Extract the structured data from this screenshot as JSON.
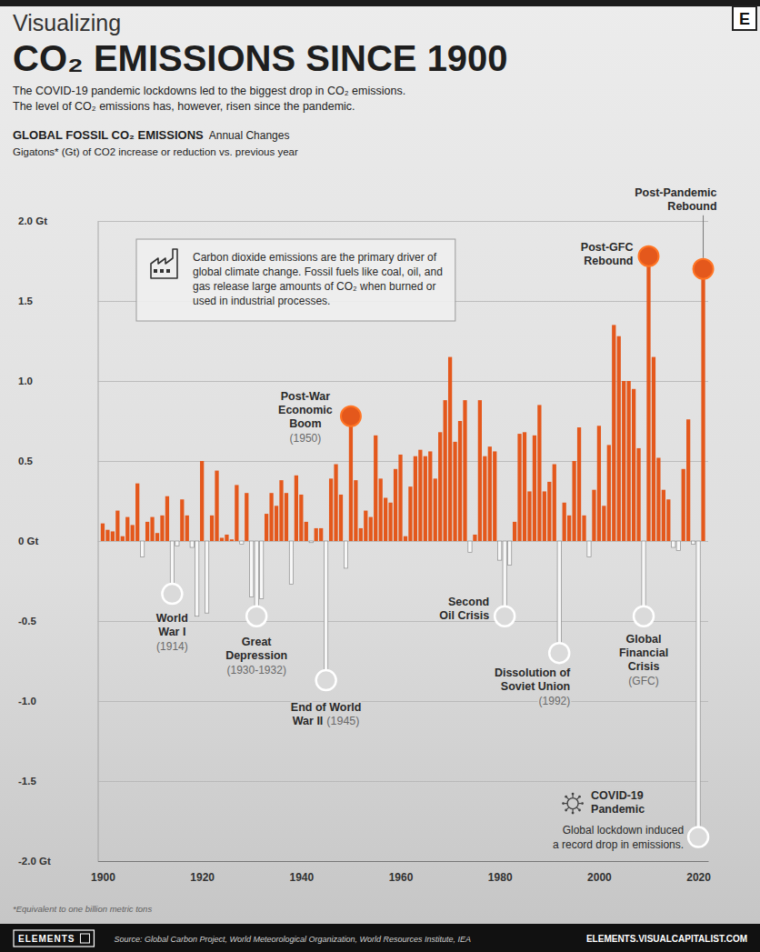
{
  "chart_data": {
    "type": "bar",
    "logo": "E",
    "pretitle": "Visualizing",
    "title": "CO₂ EMISSIONS SINCE 1900",
    "subtitle": [
      "The COVID-19 pandemic lockdowns led to the biggest drop in CO₂ emissions.",
      "The level of CO₂ emissions has, however, risen since the pandemic."
    ],
    "chart_heading": "GLOBAL FOSSIL CO₂ EMISSIONS",
    "chart_heading_note": "Annual Changes",
    "ylabel": "Gigatons* (Gt) of CO2 increase or reduction vs. previous year",
    "info_box": [
      "Carbon dioxide emissions are the primary driver of",
      "global climate change. Fossil fuels like coal, oil, and",
      "gas release large amounts of CO₂ when burned or",
      "used in industrial processes."
    ],
    "x": [
      1900,
      1901,
      1902,
      1903,
      1904,
      1905,
      1906,
      1907,
      1908,
      1909,
      1910,
      1911,
      1912,
      1913,
      1914,
      1915,
      1916,
      1917,
      1918,
      1919,
      1920,
      1921,
      1922,
      1923,
      1924,
      1925,
      1926,
      1927,
      1928,
      1929,
      1930,
      1931,
      1932,
      1933,
      1934,
      1935,
      1936,
      1937,
      1938,
      1939,
      1940,
      1941,
      1942,
      1943,
      1944,
      1945,
      1946,
      1947,
      1948,
      1949,
      1950,
      1951,
      1952,
      1953,
      1954,
      1955,
      1956,
      1957,
      1958,
      1959,
      1960,
      1961,
      1962,
      1963,
      1964,
      1965,
      1966,
      1967,
      1968,
      1969,
      1970,
      1971,
      1972,
      1973,
      1974,
      1975,
      1976,
      1977,
      1978,
      1979,
      1980,
      1981,
      1982,
      1983,
      1984,
      1985,
      1986,
      1987,
      1988,
      1989,
      1990,
      1991,
      1992,
      1993,
      1994,
      1995,
      1996,
      1997,
      1998,
      1999,
      2000,
      2001,
      2002,
      2003,
      2004,
      2005,
      2006,
      2007,
      2008,
      2009,
      2010,
      2011,
      2012,
      2013,
      2014,
      2015,
      2016,
      2017,
      2018,
      2019,
      2020,
      2021
    ],
    "values": [
      0.11,
      0.07,
      0.06,
      0.19,
      0.03,
      0.15,
      0.1,
      0.36,
      -0.1,
      0.12,
      0.15,
      0.05,
      0.16,
      0.28,
      -0.33,
      -0.03,
      0.26,
      0.16,
      -0.04,
      -0.47,
      0.5,
      -0.45,
      0.16,
      0.44,
      0.02,
      0.04,
      0.01,
      0.35,
      -0.02,
      0.3,
      -0.35,
      -0.47,
      -0.36,
      0.17,
      0.3,
      0.22,
      0.38,
      0.3,
      -0.27,
      0.41,
      0.29,
      0.12,
      -0.01,
      0.08,
      0.08,
      -0.87,
      0.39,
      0.48,
      0.29,
      -0.17,
      0.78,
      0.38,
      0.08,
      0.19,
      0.15,
      0.66,
      0.39,
      0.27,
      0.24,
      0.45,
      0.54,
      0.03,
      0.34,
      0.53,
      0.57,
      0.53,
      0.56,
      0.39,
      0.68,
      0.88,
      1.15,
      0.62,
      0.75,
      0.88,
      -0.07,
      0.04,
      0.88,
      0.53,
      0.59,
      0.56,
      -0.12,
      -0.47,
      -0.15,
      0.12,
      0.67,
      0.68,
      0.31,
      0.66,
      0.85,
      0.31,
      0.37,
      0.48,
      -0.7,
      0.24,
      0.16,
      0.5,
      0.71,
      0.16,
      -0.1,
      0.32,
      0.72,
      0.22,
      0.6,
      1.35,
      1.28,
      1.0,
      1.0,
      0.95,
      0.58,
      -0.47,
      1.78,
      1.15,
      0.52,
      0.32,
      0.26,
      -0.04,
      -0.06,
      0.45,
      0.76,
      -0.02,
      -1.85,
      1.7
    ],
    "colors": [
      "#e4581c",
      "#e4581c",
      "#e4581c",
      "#e4581c",
      "#e4581c",
      "#e4581c",
      "#e4581c",
      "#e4581c",
      "#f7f7f7",
      "#e4581c",
      "#e4581c",
      "#e4581c",
      "#e4581c",
      "#e4581c",
      "#f7f7f7",
      "#f7f7f7",
      "#e4581c",
      "#e4581c",
      "#f7f7f7",
      "#f7f7f7",
      "#e4581c",
      "#f7f7f7",
      "#e4581c",
      "#e4581c",
      "#e4581c",
      "#e4581c",
      "#e4581c",
      "#e4581c",
      "#f7f7f7",
      "#e4581c",
      "#f7f7f7",
      "#f7f7f7",
      "#f7f7f7",
      "#e4581c",
      "#e4581c",
      "#e4581c",
      "#e4581c",
      "#e4581c",
      "#f7f7f7",
      "#e4581c",
      "#e4581c",
      "#e4581c",
      "#f7f7f7",
      "#e4581c",
      "#e4581c",
      "#f7f7f7",
      "#e4581c",
      "#e4581c",
      "#e4581c",
      "#f7f7f7",
      "#e4581c",
      "#e4581c",
      "#e4581c",
      "#e4581c",
      "#e4581c",
      "#e4581c",
      "#e4581c",
      "#e4581c",
      "#e4581c",
      "#e4581c",
      "#e4581c",
      "#e4581c",
      "#e4581c",
      "#e4581c",
      "#e4581c",
      "#e4581c",
      "#e4581c",
      "#e4581c",
      "#e4581c",
      "#e4581c",
      "#e4581c",
      "#e4581c",
      "#e4581c",
      "#e4581c",
      "#f7f7f7",
      "#e4581c",
      "#e4581c",
      "#e4581c",
      "#e4581c",
      "#e4581c",
      "#f7f7f7",
      "#f7f7f7",
      "#f7f7f7",
      "#e4581c",
      "#e4581c",
      "#e4581c",
      "#e4581c",
      "#e4581c",
      "#e4581c",
      "#e4581c",
      "#e4581c",
      "#e4581c",
      "#f7f7f7",
      "#e4581c",
      "#e4581c",
      "#e4581c",
      "#e4581c",
      "#e4581c",
      "#f7f7f7",
      "#e4581c",
      "#e4581c",
      "#e4581c",
      "#e4581c",
      "#e4581c",
      "#e4581c",
      "#e4581c",
      "#e4581c",
      "#e4581c",
      "#e4581c",
      "#f7f7f7",
      "#e4581c",
      "#e4581c",
      "#e4581c",
      "#e4581c",
      "#e4581c",
      "#f7f7f7",
      "#f7f7f7",
      "#e4581c",
      "#e4581c",
      "#f7f7f7",
      "#f7f7f7",
      "#e4581c"
    ],
    "xlim": [
      1899,
      2022
    ],
    "xticks": [
      1900,
      1920,
      1940,
      1960,
      1980,
      2000,
      2020
    ],
    "ylim": [
      -2,
      2
    ],
    "yticks": [
      {
        "value": -2,
        "label": "-2.0 Gt"
      },
      -1.5,
      {
        "value": -1,
        "label": "-1.0"
      },
      -0.5,
      {
        "value": 0,
        "label": "0 Gt"
      },
      0.5,
      {
        "value": 1,
        "label": "1.0"
      },
      1.5,
      {
        "value": 2,
        "label": "2.0 Gt"
      }
    ],
    "grid": true,
    "annotations": [
      {
        "label": [
          "Post-War",
          "Economic",
          "Boom"
        ],
        "note": "(1950)",
        "x": 1950
      },
      {
        "label": [
          "Post-GFC",
          "Rebound"
        ],
        "x": 2010
      },
      {
        "label": [
          "Post-Pandemic",
          "Rebound"
        ],
        "x": 2021
      },
      {
        "label": [
          "World",
          "War I"
        ],
        "note": "(1914)",
        "x": 1914
      },
      {
        "label": [
          "Great",
          "Depression"
        ],
        "note": "(1930-1932)",
        "x": 1931
      },
      {
        "label": [
          "End of World",
          "War II"
        ],
        "note": "(1945)",
        "x": 1945
      },
      {
        "label": [
          "Second",
          "Oil Crisis"
        ],
        "x": 1981
      },
      {
        "label": [
          "Dissolution of",
          "Soviet Union"
        ],
        "note": "(1992)",
        "x": 1992
      },
      {
        "label": [
          "Global",
          "Financial",
          "Crisis"
        ],
        "note": "(GFC)",
        "x": 2009
      },
      {
        "label": [
          "COVID-19",
          "Pandemic"
        ],
        "detail": [
          "Global lockdown induced",
          "a record drop in emissions."
        ],
        "x": 2020
      }
    ],
    "footnote": "*Equivalent to one billion metric tons",
    "footer": {
      "brand": "ELEMENTS",
      "source": "Source: Global Carbon Project, World Meteorological Organization, World Resources Institute, IEA",
      "url": "ELEMENTS.VISUALCAPITALIST.COM"
    }
  }
}
